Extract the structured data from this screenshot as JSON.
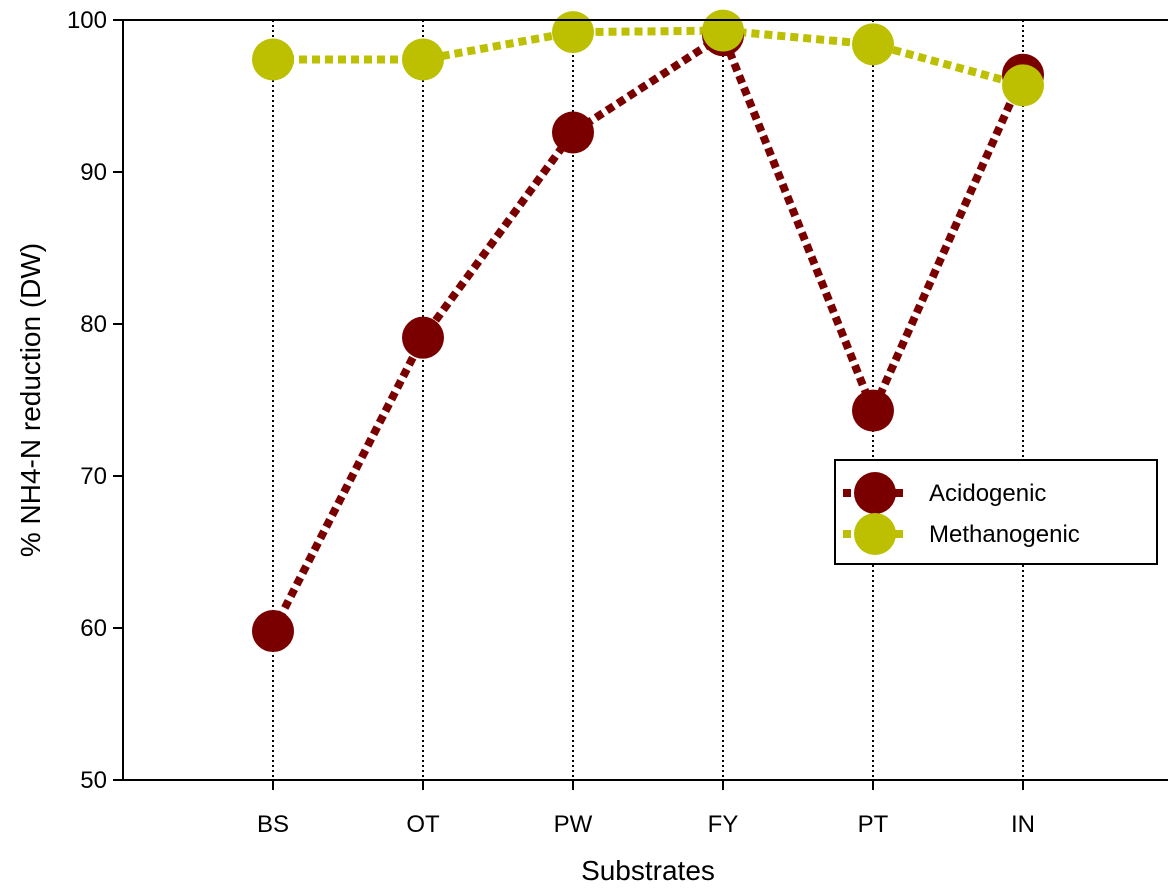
{
  "chart_data": {
    "type": "line",
    "title": "",
    "xlabel": "Substrates",
    "ylabel": "% NH4-N reduction (DW)",
    "categories": [
      "BS",
      "OT",
      "PW",
      "FY",
      "PT",
      "IN"
    ],
    "ylim": [
      50,
      100
    ],
    "yticks": [
      50,
      60,
      70,
      80,
      90,
      100
    ],
    "grid": "vertical dotted lines at each category",
    "legend_position": "right, middle",
    "series": [
      {
        "name": "Acidogenic",
        "color": "#7a0000",
        "values": [
          59.8,
          79.1,
          92.6,
          99.0,
          74.3,
          96.4
        ]
      },
      {
        "name": "Methanogenic",
        "color": "#bcc000",
        "values": [
          97.4,
          97.4,
          99.2,
          99.3,
          98.4,
          95.7
        ]
      }
    ]
  }
}
